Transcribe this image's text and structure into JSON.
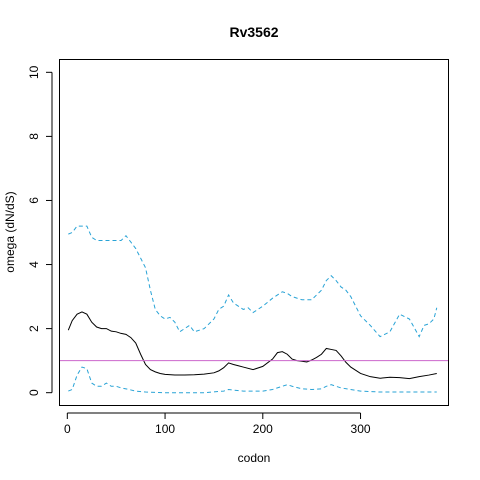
{
  "chart_data": {
    "type": "line",
    "title": "Rv3562",
    "xlabel": "codon",
    "ylabel": "omega (dN/dS)",
    "xlim": [
      -8,
      390
    ],
    "ylim": [
      -0.4,
      10.4
    ],
    "xticks": [
      0,
      100,
      200,
      300
    ],
    "yticks": [
      0,
      2,
      4,
      6,
      8,
      10
    ],
    "grid": false,
    "legend": "none",
    "reference_line": {
      "y": 1,
      "color": "#cc66cc"
    },
    "series": [
      {
        "style": "solid",
        "color": "#000000",
        "x": [
          1,
          5,
          10,
          15,
          20,
          25,
          30,
          35,
          40,
          45,
          50,
          55,
          60,
          65,
          70,
          75,
          80,
          85,
          90,
          95,
          100,
          110,
          120,
          130,
          140,
          150,
          155,
          160,
          165,
          170,
          175,
          180,
          190,
          200,
          210,
          215,
          220,
          225,
          230,
          235,
          240,
          245,
          250,
          255,
          260,
          265,
          270,
          275,
          280,
          285,
          290,
          300,
          310,
          320,
          330,
          340,
          350,
          360,
          370,
          378
        ],
        "y": [
          1.95,
          2.25,
          2.45,
          2.52,
          2.45,
          2.2,
          2.05,
          2.0,
          2.0,
          1.92,
          1.9,
          1.85,
          1.82,
          1.72,
          1.55,
          1.2,
          0.88,
          0.72,
          0.65,
          0.6,
          0.57,
          0.55,
          0.55,
          0.56,
          0.58,
          0.62,
          0.68,
          0.78,
          0.93,
          0.88,
          0.84,
          0.8,
          0.72,
          0.82,
          1.05,
          1.25,
          1.28,
          1.2,
          1.05,
          1.0,
          0.98,
          0.96,
          1.02,
          1.1,
          1.2,
          1.38,
          1.35,
          1.32,
          1.15,
          0.95,
          0.8,
          0.6,
          0.5,
          0.45,
          0.48,
          0.47,
          0.44,
          0.5,
          0.55,
          0.6
        ]
      },
      {
        "style": "dashed",
        "color": "#29a3d6",
        "x": [
          1,
          5,
          10,
          15,
          20,
          25,
          30,
          35,
          40,
          45,
          50,
          55,
          60,
          65,
          70,
          75,
          80,
          85,
          90,
          95,
          100,
          105,
          110,
          115,
          120,
          125,
          130,
          140,
          150,
          155,
          160,
          165,
          170,
          175,
          180,
          185,
          190,
          200,
          210,
          220,
          225,
          230,
          240,
          250,
          260,
          265,
          270,
          275,
          280,
          285,
          290,
          300,
          310,
          320,
          330,
          340,
          350,
          360,
          365,
          370,
          375,
          378
        ],
        "y": [
          4.95,
          5.0,
          5.2,
          5.2,
          5.2,
          4.85,
          4.75,
          4.75,
          4.75,
          4.75,
          4.75,
          4.75,
          4.9,
          4.7,
          4.5,
          4.2,
          3.9,
          3.2,
          2.6,
          2.4,
          2.3,
          2.35,
          2.2,
          1.9,
          2.0,
          2.1,
          1.9,
          2.0,
          2.3,
          2.6,
          2.7,
          3.05,
          2.8,
          2.7,
          2.6,
          2.65,
          2.5,
          2.7,
          2.95,
          3.15,
          3.1,
          3.0,
          2.9,
          2.9,
          3.2,
          3.5,
          3.65,
          3.5,
          3.3,
          3.2,
          3.0,
          2.4,
          2.1,
          1.75,
          1.9,
          2.45,
          2.3,
          1.75,
          2.1,
          2.15,
          2.3,
          2.65
        ]
      },
      {
        "style": "dashed",
        "color": "#29a3d6",
        "x": [
          1,
          5,
          10,
          15,
          20,
          25,
          30,
          35,
          40,
          45,
          50,
          55,
          60,
          70,
          80,
          100,
          120,
          140,
          160,
          165,
          170,
          180,
          200,
          210,
          220,
          225,
          230,
          240,
          250,
          260,
          265,
          270,
          275,
          280,
          300,
          320,
          340,
          360,
          378
        ],
        "y": [
          0.05,
          0.1,
          0.55,
          0.8,
          0.75,
          0.3,
          0.2,
          0.2,
          0.3,
          0.2,
          0.2,
          0.15,
          0.12,
          0.05,
          0.02,
          0.0,
          0.0,
          0.0,
          0.05,
          0.1,
          0.08,
          0.05,
          0.05,
          0.1,
          0.2,
          0.25,
          0.2,
          0.12,
          0.1,
          0.12,
          0.2,
          0.25,
          0.2,
          0.15,
          0.05,
          0.02,
          0.02,
          0.02,
          0.02
        ]
      }
    ]
  }
}
